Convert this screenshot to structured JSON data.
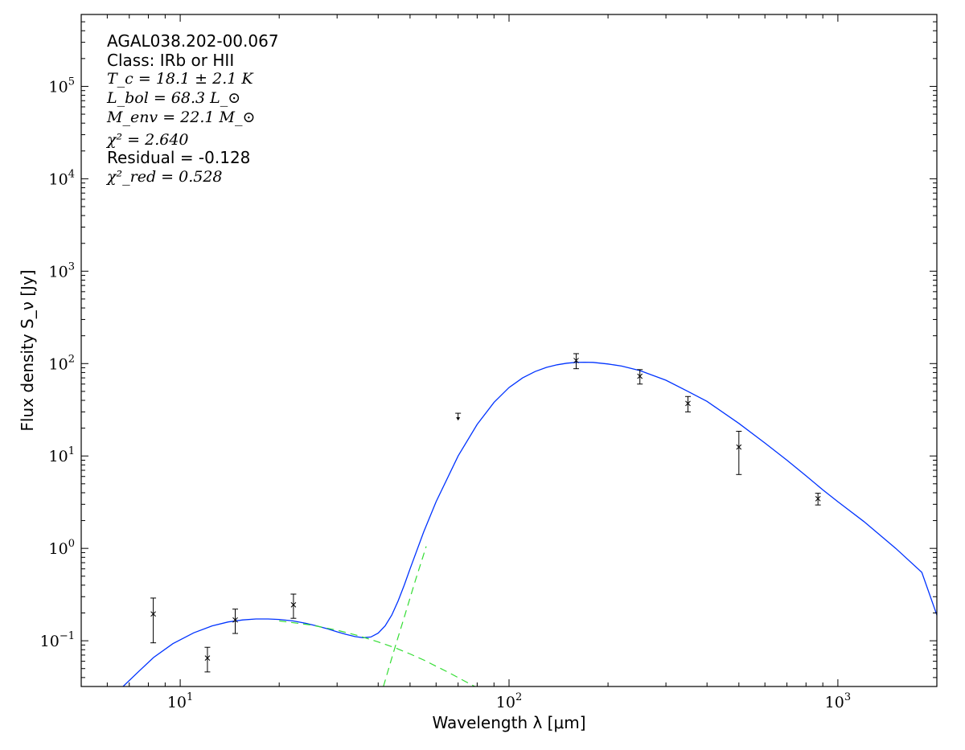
{
  "chart_data": {
    "type": "scatter",
    "title": "",
    "xlabel": "Wavelength λ [μm]",
    "ylabel": "Flux density S_ν [Jy]",
    "xscale": "log",
    "yscale": "log",
    "xlim": [
      5,
      2000
    ],
    "ylim": [
      0.032,
      600000
    ],
    "grid": false,
    "legend": "none",
    "x_ticks": [
      {
        "value": 10,
        "base": "10",
        "exp": "1"
      },
      {
        "value": 100,
        "base": "10",
        "exp": "2"
      },
      {
        "value": 1000,
        "base": "10",
        "exp": "3"
      }
    ],
    "y_ticks": [
      {
        "value": 0.1,
        "base": "10",
        "exp": "−1"
      },
      {
        "value": 1,
        "base": "10",
        "exp": "0"
      },
      {
        "value": 10,
        "base": "10",
        "exp": "1"
      },
      {
        "value": 100,
        "base": "10",
        "exp": "2"
      },
      {
        "value": 1000,
        "base": "10",
        "exp": "3"
      },
      {
        "value": 10000,
        "base": "10",
        "exp": "4"
      },
      {
        "value": 100000,
        "base": "10",
        "exp": "5"
      }
    ],
    "annotations": {
      "source": "AGAL038.202-00.067",
      "class": "Class: IRb or HII",
      "tc": "T_c = 18.1 ± 2.1 K",
      "lbol": "L_bol = 68.3 L_⊙",
      "menv": "M_env = 22.1 M_⊙",
      "chi2": "χ² = 2.640",
      "residual": "Residual = -0.128",
      "chi2red": "χ²_red = 0.528"
    },
    "points": [
      {
        "x": 8.28,
        "y": 0.195,
        "lo": 0.095,
        "hi": 0.29
      },
      {
        "x": 12.1,
        "y": 0.065,
        "lo": 0.046,
        "hi": 0.085
      },
      {
        "x": 14.7,
        "y": 0.168,
        "lo": 0.12,
        "hi": 0.22
      },
      {
        "x": 22.1,
        "y": 0.245,
        "lo": 0.175,
        "hi": 0.32
      },
      {
        "x": 160,
        "y": 108,
        "lo": 88,
        "hi": 128
      },
      {
        "x": 250,
        "y": 73,
        "lo": 60,
        "hi": 86
      },
      {
        "x": 350,
        "y": 37,
        "lo": 30,
        "hi": 44
      },
      {
        "x": 500,
        "y": 12.5,
        "lo": 6.3,
        "hi": 18.5
      },
      {
        "x": 870,
        "y": 3.45,
        "lo": 2.95,
        "hi": 3.95
      }
    ],
    "upper_limits": [
      {
        "x": 70,
        "y": 29
      }
    ],
    "series": [
      {
        "style": "solid",
        "color": "#0033ff",
        "x": [
          6.7,
          7.5,
          8.3,
          9.5,
          11,
          12.5,
          14,
          15.5,
          17,
          18.5,
          20,
          22,
          24,
          26,
          28,
          30,
          32,
          34,
          36,
          38,
          40,
          42,
          44,
          46,
          48,
          50,
          55,
          60,
          70,
          80,
          90,
          100,
          110,
          120,
          130,
          140,
          150,
          160,
          170,
          180,
          200,
          220,
          250,
          300,
          350,
          400,
          500,
          600,
          700,
          800,
          900,
          1000,
          1200,
          1500,
          1800,
          2000
        ],
        "y": [
          0.032,
          0.047,
          0.066,
          0.093,
          0.122,
          0.145,
          0.16,
          0.168,
          0.172,
          0.172,
          0.17,
          0.164,
          0.155,
          0.145,
          0.135,
          0.125,
          0.117,
          0.111,
          0.108,
          0.11,
          0.121,
          0.145,
          0.19,
          0.27,
          0.4,
          0.6,
          1.5,
          3.2,
          10,
          22,
          38,
          55,
          70,
          82,
          91,
          97,
          101,
          103,
          103.5,
          103,
          99,
          94,
          84,
          66,
          50,
          39,
          22.5,
          13.8,
          9.0,
          6.1,
          4.3,
          3.2,
          1.95,
          1.0,
          0.55,
          0.19
        ]
      },
      {
        "style": "dashed",
        "color": "#33dd33",
        "x": [
          20,
          25,
          30,
          35,
          40,
          45,
          50,
          55,
          60,
          65,
          70,
          75,
          80
        ],
        "y": [
          0.164,
          0.148,
          0.13,
          0.113,
          0.097,
          0.084,
          0.072,
          0.062,
          0.053,
          0.046,
          0.04,
          0.035,
          0.031
        ]
      },
      {
        "style": "dashed",
        "color": "#33dd33",
        "x": [
          41.5,
          44,
          46,
          48,
          50,
          52,
          54,
          56
        ],
        "y": [
          0.032,
          0.065,
          0.11,
          0.18,
          0.29,
          0.46,
          0.7,
          1.05
        ]
      }
    ]
  }
}
